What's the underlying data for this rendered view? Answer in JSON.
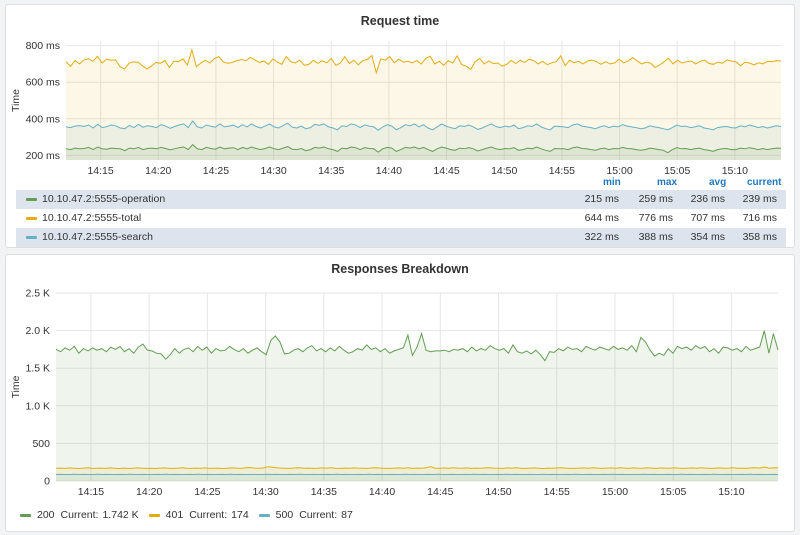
{
  "colors": {
    "green": "#629e51",
    "yellow": "#e5ac0e",
    "cyan": "#64b0c8",
    "stat_header": "#1f78c1",
    "grid": "#e6e6e6"
  },
  "legend_header": {
    "min": "min",
    "max": "max",
    "avg": "avg",
    "current": "current"
  },
  "responses_legend": {
    "current_label": "Current:",
    "items": [
      {
        "name": "200",
        "current": "1.742 K",
        "color": "#629e51"
      },
      {
        "name": "401",
        "current": "174",
        "color": "#e5ac0e"
      },
      {
        "name": "500",
        "current": "87",
        "color": "#64b0c8"
      }
    ]
  },
  "chart_data": [
    {
      "type": "area",
      "title": "Request time",
      "ylabel": "Time",
      "y_unit": "ms",
      "ylim": [
        175,
        825
      ],
      "yticks": [
        200,
        400,
        600,
        800
      ],
      "ytick_labels": [
        "200 ms",
        "400 ms",
        "600 ms",
        "800 ms"
      ],
      "xticks": [
        "14:15",
        "14:20",
        "14:25",
        "14:30",
        "14:35",
        "14:40",
        "14:45",
        "14:50",
        "14:55",
        "15:00",
        "15:05",
        "15:10"
      ],
      "x_start": "14:12",
      "x_end": "15:14",
      "grid": true,
      "legend_position": "bottom-table",
      "series": [
        {
          "name": "10.10.47.2:5555-total",
          "color": "#e5ac0e",
          "fill": true,
          "stats": {
            "min": "644 ms",
            "max": "776 ms",
            "avg": "707 ms",
            "current": "716 ms"
          },
          "values": [
            712,
            686,
            718,
            700,
            722,
            728,
            714,
            742,
            705,
            725,
            720,
            722,
            685,
            672,
            704,
            711,
            709,
            690,
            672,
            688,
            708,
            703,
            718,
            680,
            715,
            712,
            728,
            694,
            776,
            685,
            705,
            720,
            705,
            730,
            740,
            710,
            704,
            708,
            718,
            724,
            718,
            736,
            722,
            708,
            715,
            698,
            728,
            710,
            698,
            740,
            712,
            705,
            721,
            692,
            698,
            720,
            703,
            717,
            706,
            730,
            692,
            705,
            740,
            702,
            720,
            695,
            718,
            724,
            746,
            652,
            728,
            720,
            740,
            706,
            726,
            710,
            714,
            706,
            718,
            700,
            730,
            742,
            700,
            714,
            692,
            718,
            705,
            744,
            696,
            688,
            670,
            712,
            730,
            700,
            716,
            702,
            705,
            688,
            698,
            719,
            702,
            720,
            708,
            726,
            718,
            700,
            714,
            696,
            706,
            712,
            744,
            690,
            720,
            706,
            714,
            700,
            716,
            720,
            712,
            698,
            712,
            700,
            705,
            726,
            706,
            716,
            735,
            717,
            700,
            710,
            705,
            680,
            694,
            712,
            730,
            700,
            720,
            705,
            712,
            716,
            700,
            714,
            720,
            702,
            698,
            710,
            704,
            722,
            716,
            712,
            690,
            710,
            705,
            695,
            706,
            700,
            714,
            712,
            718,
            716
          ]
        },
        {
          "name": "10.10.47.2:5555-search",
          "color": "#64b0c8",
          "fill": true,
          "stats": {
            "min": "322 ms",
            "max": "388 ms",
            "avg": "354 ms",
            "current": "358 ms"
          },
          "values": [
            356,
            352,
            360,
            363,
            358,
            366,
            350,
            370,
            352,
            357,
            366,
            362,
            350,
            346,
            364,
            352,
            370,
            354,
            362,
            358,
            352,
            368,
            360,
            348,
            358,
            366,
            372,
            352,
            388,
            356,
            350,
            366,
            359,
            354,
            372,
            356,
            360,
            365,
            352,
            368,
            356,
            372,
            358,
            350,
            360,
            372,
            356,
            350,
            364,
            376,
            354,
            350,
            360,
            346,
            352,
            370,
            364,
            372,
            356,
            350,
            340,
            362,
            358,
            372,
            366,
            352,
            366,
            360,
            356,
            338,
            356,
            368,
            360,
            340,
            352,
            368,
            362,
            372,
            356,
            368,
            350,
            340,
            356,
            372,
            360,
            352,
            346,
            362,
            358,
            366,
            356,
            342,
            350,
            362,
            372,
            358,
            352,
            360,
            356,
            366,
            346,
            352,
            362,
            358,
            372,
            356,
            346,
            340,
            360,
            358,
            356,
            352,
            366,
            372,
            360,
            356,
            352,
            346,
            356,
            362,
            352,
            360,
            356,
            368,
            360,
            356,
            352,
            346,
            350,
            362,
            356,
            352,
            346,
            340,
            352,
            366,
            358,
            360,
            352,
            356,
            362,
            350,
            346,
            340,
            352,
            356,
            358,
            352,
            350,
            362,
            356,
            366,
            360,
            352,
            358,
            350,
            356,
            362,
            358
          ]
        },
        {
          "name": "10.10.47.2:5555-operation",
          "color": "#629e51",
          "fill": true,
          "stats": {
            "min": "215 ms",
            "max": "259 ms",
            "avg": "236 ms",
            "current": "239 ms"
          },
          "values": [
            236,
            232,
            240,
            236,
            238,
            244,
            232,
            246,
            236,
            234,
            240,
            238,
            236,
            226,
            240,
            236,
            244,
            232,
            238,
            240,
            236,
            244,
            238,
            230,
            236,
            242,
            246,
            232,
            259,
            236,
            232,
            244,
            238,
            234,
            246,
            236,
            240,
            242,
            232,
            244,
            236,
            246,
            238,
            232,
            238,
            246,
            236,
            232,
            240,
            248,
            234,
            232,
            238,
            226,
            232,
            244,
            240,
            246,
            236,
            232,
            222,
            240,
            236,
            246,
            242,
            232,
            242,
            238,
            236,
            218,
            236,
            244,
            240,
            222,
            232,
            244,
            240,
            246,
            236,
            244,
            232,
            222,
            236,
            246,
            240,
            232,
            228,
            240,
            236,
            242,
            236,
            224,
            232,
            240,
            246,
            236,
            232,
            238,
            236,
            242,
            228,
            232,
            240,
            236,
            246,
            236,
            228,
            222,
            238,
            236,
            236,
            232,
            242,
            246,
            238,
            236,
            232,
            228,
            236,
            240,
            232,
            238,
            236,
            244,
            238,
            236,
            232,
            228,
            232,
            240,
            236,
            232,
            228,
            215,
            232,
            242,
            236,
            238,
            232,
            236,
            240,
            232,
            228,
            222,
            232,
            236,
            238,
            232,
            232,
            240,
            236,
            242,
            238,
            232,
            238,
            232,
            236,
            240,
            239
          ]
        }
      ]
    },
    {
      "type": "area",
      "title": "Responses Breakdown",
      "ylabel": "Time",
      "ylim": [
        0,
        2500
      ],
      "yticks": [
        0,
        500,
        1000,
        1500,
        2000,
        2500
      ],
      "ytick_labels": [
        "0",
        "500",
        "1.0 K",
        "1.5 K",
        "2.0 K",
        "2.5 K"
      ],
      "xticks": [
        "14:15",
        "14:20",
        "14:25",
        "14:30",
        "14:35",
        "14:40",
        "14:45",
        "14:50",
        "14:55",
        "15:00",
        "15:05",
        "15:10"
      ],
      "x_start": "14:12",
      "x_end": "15:14",
      "grid": true,
      "legend_position": "bottom",
      "series": [
        {
          "name": "200",
          "color": "#629e51",
          "fill": true,
          "values": [
            1750,
            1720,
            1770,
            1740,
            1790,
            1700,
            1760,
            1730,
            1770,
            1740,
            1760,
            1720,
            1780,
            1750,
            1790,
            1720,
            1760,
            1700,
            1780,
            1820,
            1740,
            1730,
            1700,
            1690,
            1620,
            1680,
            1760,
            1700,
            1750,
            1770,
            1720,
            1790,
            1740,
            1780,
            1700,
            1760,
            1730,
            1740,
            1790,
            1750,
            1720,
            1760,
            1700,
            1740,
            1770,
            1720,
            1680,
            1870,
            1930,
            1850,
            1690,
            1700,
            1740,
            1760,
            1720,
            1770,
            1800,
            1730,
            1760,
            1720,
            1770,
            1730,
            1790,
            1740,
            1700,
            1720,
            1760,
            1740,
            1810,
            1750,
            1770,
            1720,
            1760,
            1700,
            1730,
            1750,
            1770,
            1940,
            1670,
            1780,
            1960,
            1740,
            1720,
            1730,
            1730,
            1740,
            1720,
            1750,
            1740,
            1760,
            1720,
            1780,
            1730,
            1760,
            1740,
            1800,
            1760,
            1740,
            1760,
            1700,
            1810,
            1720,
            1700,
            1730,
            1690,
            1740,
            1680,
            1600,
            1720,
            1710,
            1760,
            1730,
            1780,
            1750,
            1760,
            1720,
            1790,
            1760,
            1740,
            1780,
            1760,
            1740,
            1790,
            1750,
            1770,
            1740,
            1800,
            1720,
            1910,
            1850,
            1740,
            1660,
            1700,
            1670,
            1760,
            1700,
            1790,
            1760,
            1780,
            1740,
            1800,
            1760,
            1790,
            1720,
            1760,
            1700,
            1780,
            1770,
            1740,
            1760,
            1720,
            1790,
            1740,
            1760,
            1780,
            2000,
            1700,
            1960,
            1742
          ]
        },
        {
          "name": "401",
          "color": "#e5ac0e",
          "fill": true,
          "values": [
            170,
            172,
            168,
            174,
            170,
            166,
            172,
            175,
            168,
            170,
            172,
            168,
            174,
            170,
            166,
            172,
            168,
            170,
            174,
            172,
            168,
            170,
            166,
            172,
            174,
            170,
            168,
            172,
            176,
            170,
            168,
            172,
            170,
            174,
            168,
            170,
            172,
            166,
            170,
            174,
            172,
            168,
            176,
            180,
            172,
            170,
            174,
            190,
            182,
            176,
            172,
            170,
            168,
            174,
            176,
            170,
            172,
            168,
            170,
            174,
            172,
            176,
            170,
            168,
            172,
            170,
            174,
            172,
            170,
            168,
            174,
            176,
            172,
            170,
            168,
            172,
            174,
            170,
            176,
            168,
            172,
            170,
            176,
            190,
            172,
            168,
            174,
            170,
            176,
            172,
            170,
            174,
            168,
            172,
            170,
            174,
            176,
            172,
            170,
            168,
            174,
            172,
            176,
            170,
            168,
            172,
            174,
            170,
            166,
            172,
            170,
            174,
            176,
            172,
            168,
            170,
            172,
            174,
            170,
            176,
            172,
            168,
            172,
            174,
            170,
            176,
            172,
            168,
            174,
            172,
            170,
            176,
            172,
            168,
            174,
            172,
            170,
            176,
            172,
            168,
            172,
            174,
            170,
            176,
            172,
            168,
            172,
            174,
            170,
            172,
            176,
            170,
            172,
            168,
            174,
            176,
            172,
            186,
            170,
            176,
            174
          ]
        },
        {
          "name": "500",
          "color": "#64b0c8",
          "fill": true,
          "values": [
            86,
            88,
            86,
            87,
            89,
            86,
            88,
            87,
            86,
            89,
            87,
            88,
            86,
            87,
            88,
            86,
            89,
            87,
            86,
            88,
            87,
            86,
            88,
            87,
            89,
            86,
            88,
            87,
            86,
            88,
            87,
            89,
            86,
            88,
            87,
            86,
            88,
            87,
            89,
            86,
            88,
            87,
            86,
            88,
            87,
            86,
            89,
            87,
            88,
            86,
            87,
            88,
            86,
            89,
            87,
            86,
            88,
            87,
            86,
            88,
            87,
            89,
            86,
            88,
            87,
            86,
            88,
            87,
            89,
            86,
            88,
            87,
            86,
            88,
            87,
            86,
            89,
            87,
            88,
            86,
            87,
            88,
            86,
            89,
            87,
            86,
            88,
            87,
            86,
            88,
            87,
            89,
            86,
            88,
            87,
            86,
            88,
            87,
            89,
            86,
            88,
            87,
            86,
            88,
            87,
            86,
            89,
            87,
            88,
            86,
            87,
            88,
            86,
            89,
            87,
            86,
            88,
            87,
            86,
            88,
            87,
            89,
            86,
            88,
            87,
            86,
            88,
            87,
            89,
            86,
            88,
            87,
            86,
            88,
            87,
            86,
            89,
            87,
            88,
            86,
            87,
            88,
            86,
            89,
            87,
            86,
            88,
            87,
            86,
            88,
            87,
            89,
            86,
            88,
            87,
            86,
            88,
            87
          ]
        }
      ]
    }
  ]
}
